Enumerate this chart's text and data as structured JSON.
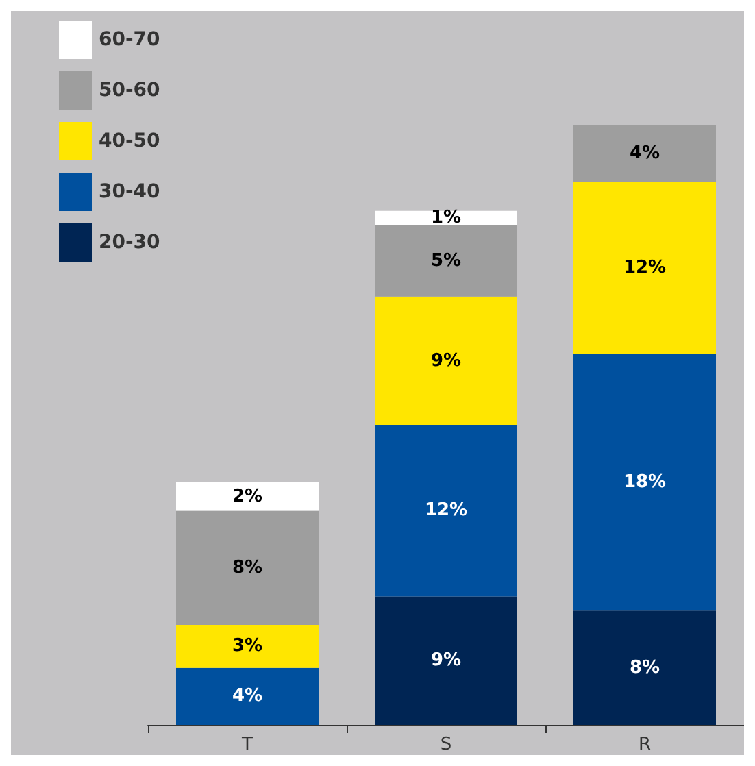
{
  "chart_data": {
    "type": "bar",
    "stacked": true,
    "legend": "top left",
    "categories": [
      "T",
      "S",
      "R"
    ],
    "series": [
      {
        "name": "20-30",
        "color": "#002554",
        "values": [
          null,
          9,
          8
        ],
        "value_labels": [
          null,
          "9%",
          "8%"
        ]
      },
      {
        "name": "30-40",
        "color": "#00509e",
        "values": [
          4,
          12,
          18
        ],
        "value_labels": [
          "4%",
          "12%",
          "18%"
        ]
      },
      {
        "name": "40-50",
        "color": "#ffe600",
        "values": [
          3,
          9,
          12
        ],
        "value_labels": [
          "3%",
          "9%",
          "12%"
        ]
      },
      {
        "name": "50-60",
        "color": "#9e9e9e",
        "values": [
          8,
          5,
          4
        ],
        "value_labels": [
          "8%",
          "5%",
          "4%"
        ]
      },
      {
        "name": "60-70",
        "color": "#ffffff",
        "values": [
          2,
          1,
          null
        ],
        "value_labels": [
          "2%",
          "1%",
          null
        ]
      }
    ]
  }
}
